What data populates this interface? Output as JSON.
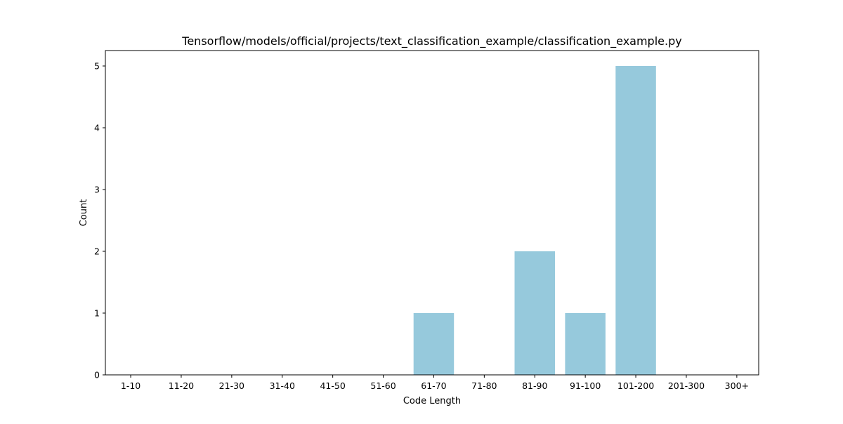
{
  "chart_data": {
    "type": "bar",
    "title": "Tensorflow/models/official/projects/text_classification_example/classification_example.py",
    "xlabel": "Code Length",
    "ylabel": "Count",
    "categories": [
      "1-10",
      "11-20",
      "21-30",
      "31-40",
      "41-50",
      "51-60",
      "61-70",
      "71-80",
      "81-90",
      "91-100",
      "101-200",
      "201-300",
      "300+"
    ],
    "values": [
      0,
      0,
      0,
      0,
      0,
      0,
      1,
      0,
      2,
      1,
      5,
      0,
      0
    ],
    "ylim": [
      0,
      5.25
    ],
    "yticks": [
      0,
      1,
      2,
      3,
      4,
      5
    ],
    "grid": false,
    "bar_color": "#96c9dc"
  }
}
